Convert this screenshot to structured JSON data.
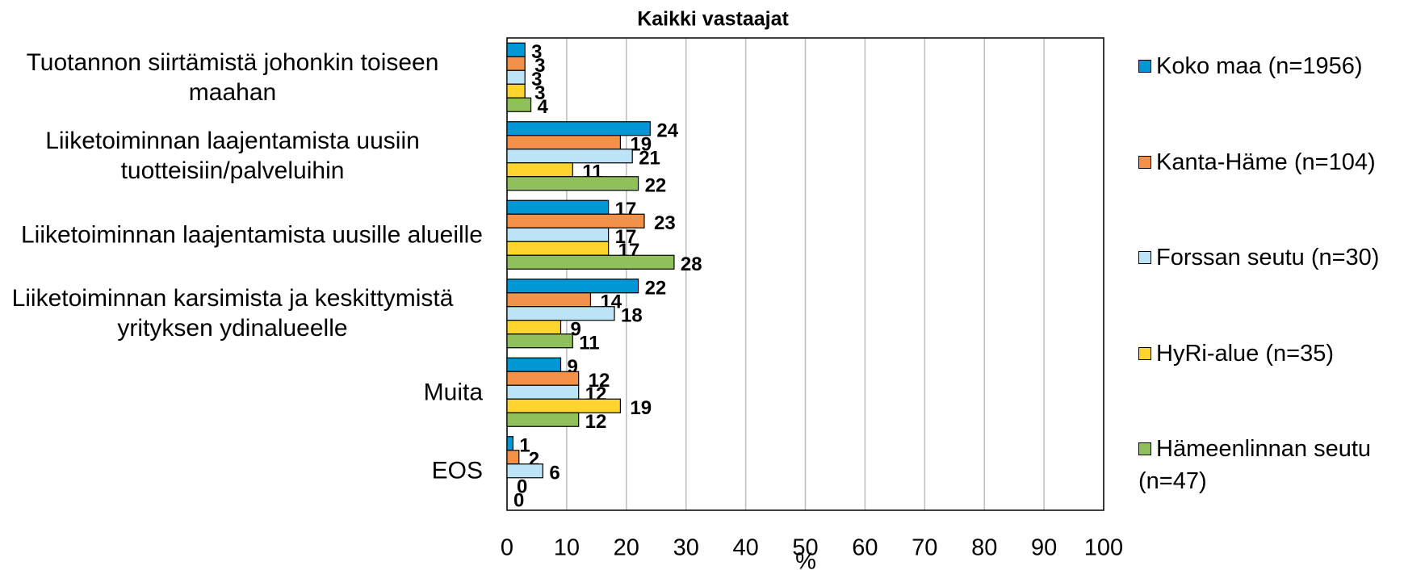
{
  "chart_data": {
    "type": "hbar",
    "title": "Kaikki vastaajat",
    "xlabel": "%",
    "categories": [
      "Tuotannon siirtämistä johonkin toiseen maahan",
      "Liiketoiminnan laajentamista uusiin tuotteisiin/palveluihin",
      "Liiketoiminnan laajentamista uusille alueille",
      "Liiketoiminnan karsimista ja keskittymistä yrityksen ydinalueelle",
      "Muita",
      "EOS"
    ],
    "series": [
      {
        "name": "Koko maa (n=1956)",
        "color": "#0097d4",
        "values": [
          3,
          24,
          17,
          22,
          9,
          1
        ]
      },
      {
        "name": "Kanta-Häme (n=104)",
        "color": "#f39149",
        "values": [
          3,
          19,
          23,
          14,
          12,
          2
        ]
      },
      {
        "name": "Forssan seutu (n=30)",
        "color": "#bde4f6",
        "values": [
          3,
          21,
          17,
          18,
          12,
          6
        ]
      },
      {
        "name": "HyRi-alue (n=35)",
        "color": "#ffd42f",
        "values": [
          3,
          11,
          17,
          9,
          19,
          0
        ]
      },
      {
        "name": "Hämeenlinnan seutu (n=47)",
        "color": "#8fc05c",
        "values": [
          4,
          22,
          28,
          11,
          12,
          0
        ]
      }
    ],
    "xlim": [
      0,
      100
    ],
    "xticks": [
      0,
      10,
      20,
      30,
      40,
      50,
      60,
      70,
      80,
      90,
      100
    ],
    "grid": true,
    "legend": "right"
  }
}
